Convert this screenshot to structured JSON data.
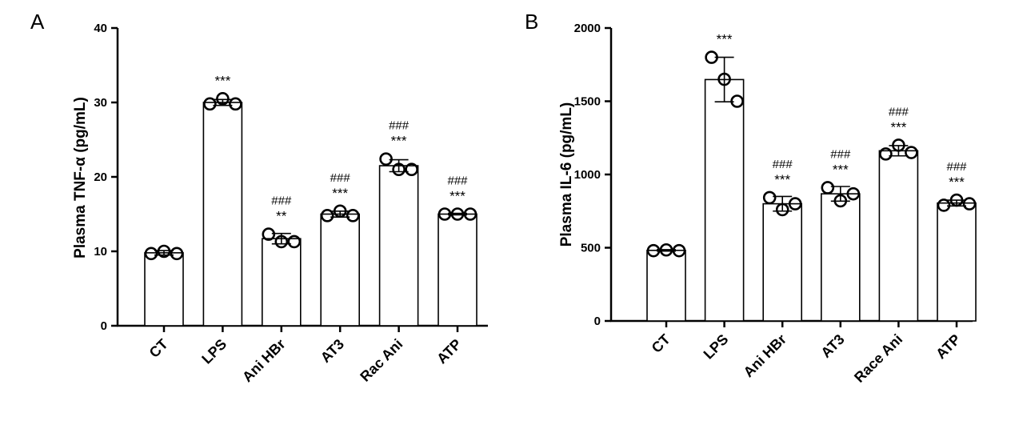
{
  "chart_data": [
    {
      "panel": "A",
      "type": "bar",
      "categories": [
        "CT",
        "LPS",
        "Ani HBr",
        "AT3",
        "Rac Ani",
        "ATP"
      ],
      "values": [
        9.8,
        30.0,
        11.7,
        15.0,
        21.5,
        15.0
      ],
      "error": [
        0.3,
        0.4,
        0.7,
        0.4,
        0.8,
        0.1
      ],
      "points": [
        [
          9.7,
          10.0,
          9.7
        ],
        [
          29.8,
          30.5,
          29.8
        ],
        [
          12.3,
          11.3,
          11.3
        ],
        [
          14.8,
          15.4,
          14.8
        ],
        [
          22.4,
          21.0,
          21.0
        ],
        [
          15.0,
          15.0,
          15.0
        ]
      ],
      "stars": [
        "",
        "***",
        "**",
        "***",
        "***",
        "***"
      ],
      "hashes": [
        "",
        "",
        "###",
        "###",
        "###",
        "###"
      ],
      "ylabel": "Plasma TNF-α (pg/mL)",
      "ylim": [
        0,
        40
      ],
      "yticks": [
        0,
        10,
        20,
        30,
        40
      ],
      "xlabel": "",
      "title": ""
    },
    {
      "panel": "B",
      "type": "bar",
      "categories": [
        "CT",
        "LPS",
        "Ani HBr",
        "AT3",
        "Race Ani",
        "ATP"
      ],
      "values": [
        482,
        1648,
        800,
        868,
        1162,
        805
      ],
      "error": [
        5,
        152,
        50,
        50,
        35,
        20
      ],
      "points": [
        [
          480,
          485,
          480
        ],
        [
          1800,
          1650,
          1500
        ],
        [
          842,
          760,
          800
        ],
        [
          910,
          820,
          868
        ],
        [
          1140,
          1200,
          1150
        ],
        [
          790,
          825,
          800
        ]
      ],
      "stars": [
        "",
        "***",
        "***",
        "***",
        "***",
        "***"
      ],
      "hashes": [
        "",
        "",
        "###",
        "###",
        "###",
        "###"
      ],
      "ylabel": "Plasma IL-6 (pg/mL)",
      "ylim": [
        0,
        2000
      ],
      "yticks": [
        0,
        500,
        1000,
        1500,
        2000
      ],
      "xlabel": "",
      "title": ""
    }
  ]
}
